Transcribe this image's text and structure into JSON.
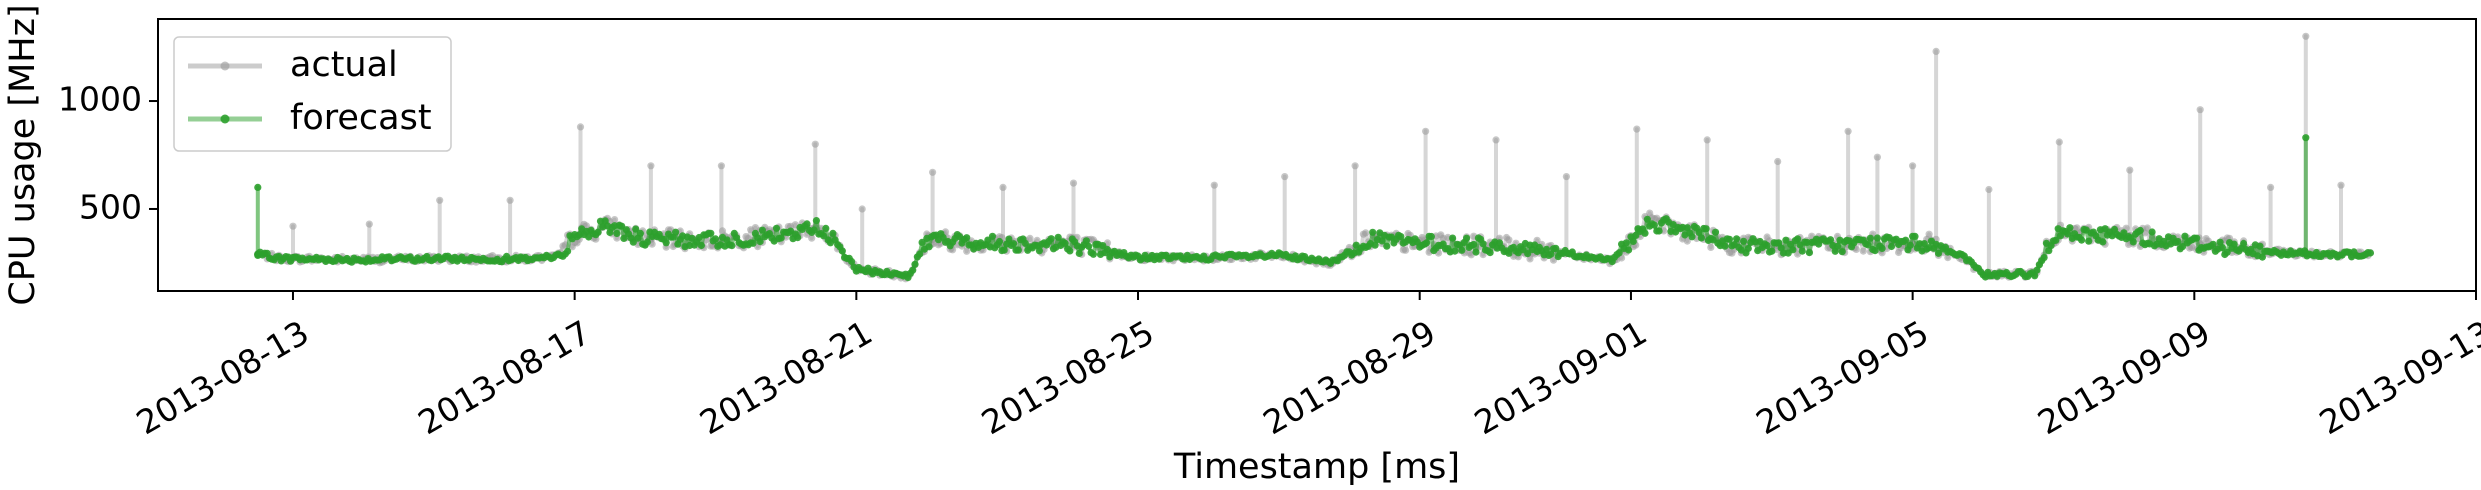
{
  "chart_data": {
    "type": "line",
    "xlabel": "Timestamp [ms]",
    "ylabel": "CPU usage [MHz]",
    "x_tick_labels": [
      "2013-08-13",
      "2013-08-17",
      "2013-08-21",
      "2013-08-25",
      "2013-08-29",
      "2013-09-01",
      "2013-09-05",
      "2013-09-09",
      "2013-09-13"
    ],
    "x_ticks": [
      "2013-08-13",
      "2013-08-17",
      "2013-08-21",
      "2013-08-25",
      "2013-08-29",
      "2013-09-01",
      "2013-09-05",
      "2013-09-09",
      "2013-09-13"
    ],
    "y_tick_labels": [
      "500",
      "1000"
    ],
    "y_ticks": [
      500,
      1000
    ],
    "xlim": [
      "2013-08-11T02:00",
      "2013-09-13T00:00"
    ],
    "ylim": [
      120,
      1380
    ],
    "grid": false,
    "legend_position": "top-left",
    "x_start": "2013-08-12T12:00",
    "x_end": "2013-09-11T12:00",
    "series": [
      {
        "name": "actual",
        "color": "#999999",
        "profile": [
          [
            "2013-08-12T12:00",
            290
          ],
          [
            "2013-08-12T20:00",
            270
          ],
          [
            "2013-08-14T00:00",
            265
          ],
          [
            "2013-08-15T00:00",
            270
          ],
          [
            "2013-08-16T00:00",
            268
          ],
          [
            "2013-08-16T18:00",
            275
          ],
          [
            "2013-08-17T00:00",
            380
          ],
          [
            "2013-08-17T12:00",
            420
          ],
          [
            "2013-08-18T00:00",
            360
          ],
          [
            "2013-08-19T00:00",
            355
          ],
          [
            "2013-08-20T00:00",
            380
          ],
          [
            "2013-08-20T12:00",
            420
          ],
          [
            "2013-08-21T00:00",
            220
          ],
          [
            "2013-08-21T18:00",
            190
          ],
          [
            "2013-08-22T00:00",
            360
          ],
          [
            "2013-08-23T00:00",
            340
          ],
          [
            "2013-08-24T00:00",
            340
          ],
          [
            "2013-08-25T00:00",
            275
          ],
          [
            "2013-08-26T00:00",
            275
          ],
          [
            "2013-08-27T00:00",
            285
          ],
          [
            "2013-08-27T18:00",
            250
          ],
          [
            "2013-08-28T06:00",
            360
          ],
          [
            "2013-08-29T00:00",
            340
          ],
          [
            "2013-08-30T00:00",
            330
          ],
          [
            "2013-08-31T00:00",
            300
          ],
          [
            "2013-08-31T18:00",
            260
          ],
          [
            "2013-09-01T06:00",
            440
          ],
          [
            "2013-09-02T00:00",
            380
          ],
          [
            "2013-09-02T12:00",
            330
          ],
          [
            "2013-09-03T12:00",
            330
          ],
          [
            "2013-09-04T12:00",
            340
          ],
          [
            "2013-09-05T06:00",
            340
          ],
          [
            "2013-09-05T18:00",
            270
          ],
          [
            "2013-09-06T00:00",
            195
          ],
          [
            "2013-09-06T18:00",
            200
          ],
          [
            "2013-09-07T00:00",
            380
          ],
          [
            "2013-09-08T00:00",
            380
          ],
          [
            "2013-09-09T00:00",
            340
          ],
          [
            "2013-09-10T00:00",
            300
          ],
          [
            "2013-09-11T00:00",
            290
          ],
          [
            "2013-09-11T12:00",
            290
          ]
        ],
        "spikes": [
          [
            "2013-08-13T00:00",
            420
          ],
          [
            "2013-08-14T02:00",
            430
          ],
          [
            "2013-08-15T02:00",
            540
          ],
          [
            "2013-08-16T02:00",
            540
          ],
          [
            "2013-08-17T02:00",
            880
          ],
          [
            "2013-08-18T02:00",
            700
          ],
          [
            "2013-08-19T02:00",
            700
          ],
          [
            "2013-08-20T10:00",
            800
          ],
          [
            "2013-08-21T02:00",
            500
          ],
          [
            "2013-08-22T02:00",
            670
          ],
          [
            "2013-08-23T02:00",
            600
          ],
          [
            "2013-08-24T02:00",
            620
          ],
          [
            "2013-08-26T02:00",
            610
          ],
          [
            "2013-08-27T02:00",
            650
          ],
          [
            "2013-08-28T02:00",
            700
          ],
          [
            "2013-08-29T02:00",
            860
          ],
          [
            "2013-08-30T02:00",
            820
          ],
          [
            "2013-08-31T02:00",
            650
          ],
          [
            "2013-09-01T02:00",
            870
          ],
          [
            "2013-09-02T02:00",
            820
          ],
          [
            "2013-09-03T02:00",
            720
          ],
          [
            "2013-09-04T02:00",
            860
          ],
          [
            "2013-09-04T12:00",
            740
          ],
          [
            "2013-09-05T00:00",
            700
          ],
          [
            "2013-09-05T08:00",
            1230
          ],
          [
            "2013-09-06T02:00",
            590
          ],
          [
            "2013-09-07T02:00",
            810
          ],
          [
            "2013-09-08T02:00",
            680
          ],
          [
            "2013-09-09T02:00",
            960
          ],
          [
            "2013-09-10T02:00",
            600
          ],
          [
            "2013-09-10T14:00",
            1300
          ],
          [
            "2013-09-11T02:00",
            610
          ]
        ]
      },
      {
        "name": "forecast",
        "color": "#2ca02c",
        "spikes": [
          [
            "2013-08-12T12:00",
            600
          ],
          [
            "2013-09-10T14:00",
            830
          ]
        ]
      }
    ]
  }
}
